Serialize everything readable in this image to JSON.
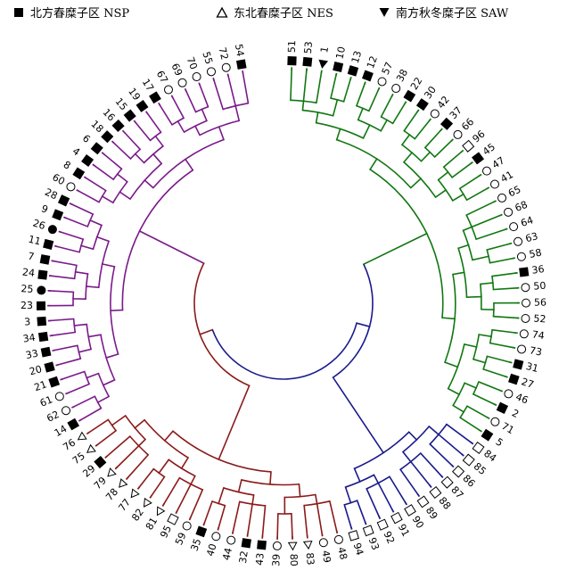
{
  "legend": [
    {
      "symbol": "filled-square-icon",
      "label": "北方春糜子区 NSP"
    },
    {
      "symbol": "open-triangle-icon",
      "label": "东北春糜子区 NES"
    },
    {
      "symbol": "filled-down-triangle-icon",
      "label": "南方秋冬糜子区 SAW"
    }
  ],
  "colors": {
    "cluster_green": "#117711",
    "cluster_navy": "#1a1a8c",
    "cluster_brown": "#8b1a1a",
    "cluster_purple": "#7a1a8a",
    "symbol": "#000000"
  },
  "leaves": [
    {
      "id": "51",
      "symbol": "filled-square",
      "cluster": "green"
    },
    {
      "id": "53",
      "symbol": "filled-square",
      "cluster": "green"
    },
    {
      "id": "1",
      "symbol": "filled-down-triangle",
      "cluster": "green"
    },
    {
      "id": "10",
      "symbol": "filled-square",
      "cluster": "green"
    },
    {
      "id": "13",
      "symbol": "filled-square",
      "cluster": "green"
    },
    {
      "id": "12",
      "symbol": "filled-square",
      "cluster": "green"
    },
    {
      "id": "57",
      "symbol": "circle",
      "cluster": "green"
    },
    {
      "id": "38",
      "symbol": "circle",
      "cluster": "green"
    },
    {
      "id": "22",
      "symbol": "filled-square",
      "cluster": "green"
    },
    {
      "id": "30",
      "symbol": "filled-square",
      "cluster": "green"
    },
    {
      "id": "42",
      "symbol": "circle",
      "cluster": "green"
    },
    {
      "id": "37",
      "symbol": "filled-square",
      "cluster": "green"
    },
    {
      "id": "66",
      "symbol": "circle",
      "cluster": "green"
    },
    {
      "id": "96",
      "symbol": "open-square",
      "cluster": "green"
    },
    {
      "id": "45",
      "symbol": "filled-square",
      "cluster": "green"
    },
    {
      "id": "47",
      "symbol": "circle",
      "cluster": "green"
    },
    {
      "id": "41",
      "symbol": "circle",
      "cluster": "green"
    },
    {
      "id": "65",
      "symbol": "circle",
      "cluster": "green"
    },
    {
      "id": "68",
      "symbol": "circle",
      "cluster": "green"
    },
    {
      "id": "64",
      "symbol": "circle",
      "cluster": "green"
    },
    {
      "id": "63",
      "symbol": "circle",
      "cluster": "green"
    },
    {
      "id": "58",
      "symbol": "circle",
      "cluster": "green"
    },
    {
      "id": "36",
      "symbol": "filled-square",
      "cluster": "green"
    },
    {
      "id": "50",
      "symbol": "circle",
      "cluster": "green"
    },
    {
      "id": "56",
      "symbol": "circle",
      "cluster": "green"
    },
    {
      "id": "52",
      "symbol": "circle",
      "cluster": "green"
    },
    {
      "id": "74",
      "symbol": "circle",
      "cluster": "green"
    },
    {
      "id": "73",
      "symbol": "circle",
      "cluster": "green"
    },
    {
      "id": "31",
      "symbol": "filled-square",
      "cluster": "green"
    },
    {
      "id": "27",
      "symbol": "filled-square",
      "cluster": "green"
    },
    {
      "id": "46",
      "symbol": "circle",
      "cluster": "green"
    },
    {
      "id": "2",
      "symbol": "filled-square",
      "cluster": "green"
    },
    {
      "id": "71",
      "symbol": "circle",
      "cluster": "green"
    },
    {
      "id": "5",
      "symbol": "filled-square",
      "cluster": "green"
    },
    {
      "id": "84",
      "symbol": "open-square",
      "cluster": "navy"
    },
    {
      "id": "85",
      "symbol": "open-square",
      "cluster": "navy"
    },
    {
      "id": "86",
      "symbol": "open-square",
      "cluster": "navy"
    },
    {
      "id": "87",
      "symbol": "open-square",
      "cluster": "navy"
    },
    {
      "id": "88",
      "symbol": "open-square",
      "cluster": "navy"
    },
    {
      "id": "89",
      "symbol": "open-square",
      "cluster": "navy"
    },
    {
      "id": "90",
      "symbol": "open-square",
      "cluster": "navy"
    },
    {
      "id": "91",
      "symbol": "open-square",
      "cluster": "navy"
    },
    {
      "id": "92",
      "symbol": "open-square",
      "cluster": "navy"
    },
    {
      "id": "93",
      "symbol": "open-square",
      "cluster": "navy"
    },
    {
      "id": "94",
      "symbol": "open-square",
      "cluster": "navy"
    },
    {
      "id": "48",
      "symbol": "circle",
      "cluster": "brown"
    },
    {
      "id": "49",
      "symbol": "circle",
      "cluster": "brown"
    },
    {
      "id": "83",
      "symbol": "open-triangle",
      "cluster": "brown"
    },
    {
      "id": "80",
      "symbol": "open-triangle",
      "cluster": "brown"
    },
    {
      "id": "39",
      "symbol": "circle",
      "cluster": "brown"
    },
    {
      "id": "43",
      "symbol": "filled-square",
      "cluster": "brown"
    },
    {
      "id": "32",
      "symbol": "filled-square",
      "cluster": "brown"
    },
    {
      "id": "44",
      "symbol": "circle",
      "cluster": "brown"
    },
    {
      "id": "40",
      "symbol": "circle",
      "cluster": "brown"
    },
    {
      "id": "35",
      "symbol": "filled-square",
      "cluster": "brown"
    },
    {
      "id": "59",
      "symbol": "circle",
      "cluster": "brown"
    },
    {
      "id": "95",
      "symbol": "open-square",
      "cluster": "brown"
    },
    {
      "id": "81",
      "symbol": "open-triangle",
      "cluster": "brown"
    },
    {
      "id": "82",
      "symbol": "open-triangle",
      "cluster": "brown"
    },
    {
      "id": "77",
      "symbol": "open-triangle",
      "cluster": "brown"
    },
    {
      "id": "78",
      "symbol": "open-triangle",
      "cluster": "brown"
    },
    {
      "id": "79",
      "symbol": "open-triangle",
      "cluster": "brown"
    },
    {
      "id": "29",
      "symbol": "filled-square",
      "cluster": "brown"
    },
    {
      "id": "75",
      "symbol": "open-triangle",
      "cluster": "brown"
    },
    {
      "id": "76",
      "symbol": "open-triangle",
      "cluster": "brown"
    },
    {
      "id": "14",
      "symbol": "filled-square",
      "cluster": "purple"
    },
    {
      "id": "62",
      "symbol": "circle",
      "cluster": "purple"
    },
    {
      "id": "61",
      "symbol": "circle",
      "cluster": "purple"
    },
    {
      "id": "21",
      "symbol": "filled-square",
      "cluster": "purple"
    },
    {
      "id": "20",
      "symbol": "filled-square",
      "cluster": "purple"
    },
    {
      "id": "33",
      "symbol": "filled-square",
      "cluster": "purple"
    },
    {
      "id": "34",
      "symbol": "filled-square",
      "cluster": "purple"
    },
    {
      "id": "3",
      "symbol": "filled-square",
      "cluster": "purple"
    },
    {
      "id": "23",
      "symbol": "filled-square",
      "cluster": "purple"
    },
    {
      "id": "25",
      "symbol": "filled-circle",
      "cluster": "purple"
    },
    {
      "id": "24",
      "symbol": "filled-square",
      "cluster": "purple"
    },
    {
      "id": "7",
      "symbol": "filled-square",
      "cluster": "purple"
    },
    {
      "id": "11",
      "symbol": "filled-square",
      "cluster": "purple"
    },
    {
      "id": "26",
      "symbol": "filled-circle",
      "cluster": "purple"
    },
    {
      "id": "9",
      "symbol": "filled-square",
      "cluster": "purple"
    },
    {
      "id": "28",
      "symbol": "filled-square",
      "cluster": "purple"
    },
    {
      "id": "60",
      "symbol": "circle",
      "cluster": "purple"
    },
    {
      "id": "8",
      "symbol": "filled-square",
      "cluster": "purple"
    },
    {
      "id": "4",
      "symbol": "filled-square",
      "cluster": "purple"
    },
    {
      "id": "6",
      "symbol": "filled-square",
      "cluster": "purple"
    },
    {
      "id": "18",
      "symbol": "filled-square",
      "cluster": "purple"
    },
    {
      "id": "16",
      "symbol": "filled-square",
      "cluster": "purple"
    },
    {
      "id": "15",
      "symbol": "filled-square",
      "cluster": "purple"
    },
    {
      "id": "19",
      "symbol": "filled-square",
      "cluster": "purple"
    },
    {
      "id": "17",
      "symbol": "filled-square",
      "cluster": "purple"
    },
    {
      "id": "67",
      "symbol": "circle",
      "cluster": "purple"
    },
    {
      "id": "69",
      "symbol": "circle",
      "cluster": "purple"
    },
    {
      "id": "70",
      "symbol": "circle",
      "cluster": "purple"
    },
    {
      "id": "55",
      "symbol": "circle",
      "cluster": "purple"
    },
    {
      "id": "72",
      "symbol": "circle",
      "cluster": "purple"
    },
    {
      "id": "54",
      "symbol": "filled-square",
      "cluster": "purple"
    }
  ]
}
